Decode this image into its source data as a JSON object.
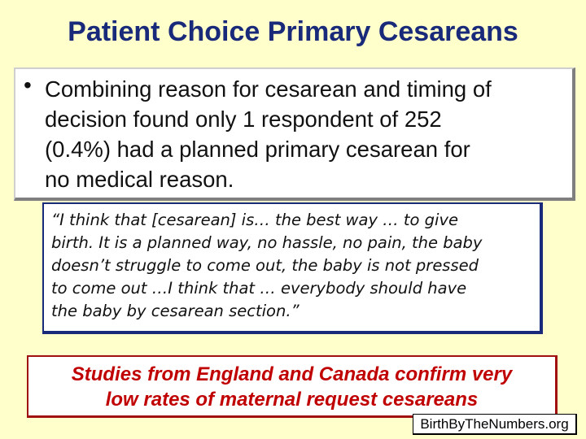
{
  "slide": {
    "title": "Patient Choice Primary Cesareans",
    "bullet": {
      "marker": "•",
      "lines": [
        "Combining reason for cesarean and timing of",
        "decision found only 1 respondent of 252",
        "(0.4%) had a planned primary cesarean for",
        "no medical reason."
      ]
    },
    "quote": {
      "lines": [
        "“I think that [cesarean] is… the best way … to give",
        "birth. It is a planned way, no hassle, no pain, the baby",
        "doesn’t struggle to come out, the baby is not pressed",
        "to come out …I think that … everybody should have",
        "the baby by cesarean section.”"
      ]
    },
    "studies": {
      "lines": [
        "Studies from England and Canada confirm very",
        "low rates of maternal request cesareans"
      ]
    },
    "credit": "BirthByTheNumbers.org"
  }
}
